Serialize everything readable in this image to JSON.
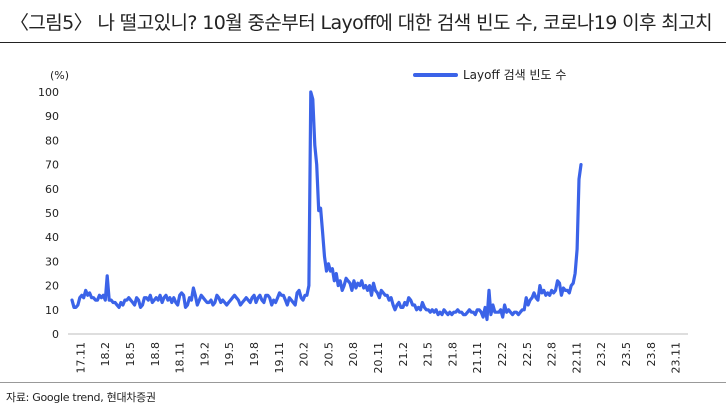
{
  "title": "〈그림5〉 나 떨고있니? 10월 중순부터 Layoff에 대한 검색 빈도 수, 코로나19 이후 최고치",
  "source": "자료: Google trend, 현대차증권",
  "chart_data": {
    "type": "line",
    "ylabel": "(%)",
    "ylim": [
      0,
      100
    ],
    "yticks": [
      "0",
      "10",
      "20",
      "30",
      "40",
      "50",
      "60",
      "70",
      "80",
      "90",
      "100"
    ],
    "grid": false,
    "legend_position": "top-right",
    "color": "#3B63E8",
    "x_tick_labels": [
      "17.11",
      "18.2",
      "18.5",
      "18.8",
      "18.11",
      "19.2",
      "19.5",
      "19.8",
      "19.11",
      "20.2",
      "20.5",
      "20.8",
      "20.11",
      "21.2",
      "21.5",
      "21.8",
      "21.11",
      "22.2",
      "22.5",
      "22.8",
      "22.11",
      "23.2",
      "23.5",
      "23.8",
      "23.11"
    ],
    "series": [
      {
        "name": "Layoff 검색 빈도 수",
        "values": [
          14,
          11,
          11,
          12,
          15,
          16,
          15,
          18,
          16,
          17,
          15,
          15,
          14,
          14,
          16,
          15,
          16,
          14,
          24,
          14,
          14,
          13,
          13,
          12,
          11,
          13,
          12,
          14,
          14,
          15,
          14,
          13,
          12,
          15,
          14,
          11,
          12,
          15,
          15,
          14,
          16,
          13,
          14,
          15,
          14,
          16,
          13,
          15,
          16,
          14,
          15,
          13,
          15,
          13,
          12,
          16,
          17,
          16,
          11,
          12,
          15,
          14,
          19,
          16,
          12,
          14,
          16,
          15,
          14,
          13,
          13,
          14,
          12,
          13,
          16,
          15,
          13,
          14,
          13,
          12,
          13,
          14,
          15,
          16,
          15,
          14,
          12,
          13,
          14,
          15,
          14,
          13,
          15,
          16,
          13,
          15,
          16,
          14,
          13,
          16,
          16,
          15,
          12,
          14,
          13,
          15,
          17,
          16,
          16,
          14,
          12,
          15,
          14,
          13,
          12,
          17,
          18,
          15,
          14,
          16,
          16,
          20,
          100,
          97,
          78,
          70,
          51,
          52,
          42,
          32,
          26,
          29,
          26,
          27,
          22,
          25,
          20,
          22,
          18,
          20,
          23,
          22,
          21,
          18,
          22,
          19,
          21,
          20,
          22,
          19,
          20,
          18,
          20,
          16,
          21,
          18,
          17,
          15,
          18,
          17,
          16,
          16,
          14,
          15,
          12,
          10,
          12,
          13,
          11,
          11,
          13,
          12,
          15,
          14,
          12,
          12,
          10,
          11,
          10,
          13,
          11,
          10,
          10,
          9,
          10,
          9,
          10,
          8,
          9,
          8,
          10,
          9,
          8,
          9,
          8,
          9,
          9,
          10,
          9,
          9,
          8,
          8,
          9,
          10,
          9,
          9,
          8,
          10,
          10,
          9,
          7,
          11,
          6,
          18,
          8,
          12,
          9,
          9,
          9,
          10,
          7,
          12,
          9,
          10,
          9,
          8,
          9,
          9,
          8,
          9,
          10,
          10,
          15,
          12,
          14,
          15,
          17,
          15,
          14,
          20,
          17,
          18,
          16,
          17,
          16,
          18,
          17,
          18,
          22,
          21,
          16,
          19,
          18,
          18,
          17,
          20,
          21,
          25,
          35,
          64,
          70
        ]
      }
    ]
  }
}
